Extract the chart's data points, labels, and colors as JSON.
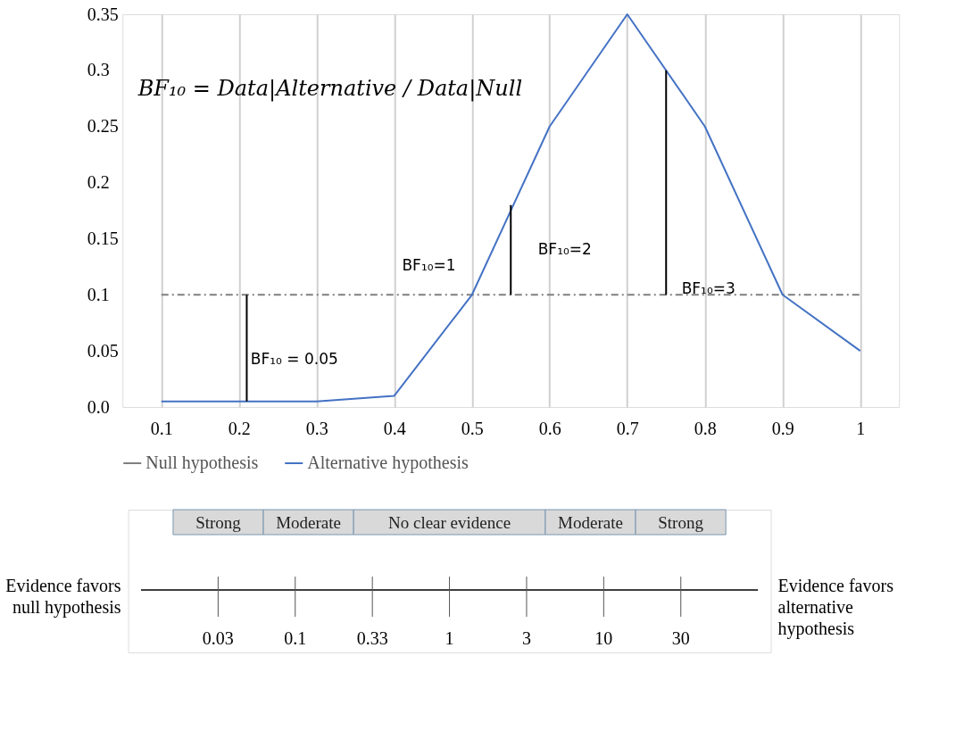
{
  "chart_data": [
    {
      "type": "line",
      "x": [
        0.1,
        0.2,
        0.3,
        0.4,
        0.5,
        0.6,
        0.7,
        0.8,
        0.9,
        1
      ],
      "xlim": [
        0.05,
        1.05
      ],
      "xticks": [
        0.1,
        0.2,
        0.3,
        0.4,
        0.5,
        0.6,
        0.7,
        0.8,
        0.9,
        1
      ],
      "ylim": [
        0,
        0.35
      ],
      "yticks": [
        {
          "value": 0,
          "label": "0.0"
        },
        0.05,
        0.1,
        0.15,
        0.2,
        0.25,
        0.3,
        0.35
      ],
      "grid": "x",
      "legend": "bottom",
      "marker": "none",
      "series": [
        {
          "name": "Null hypothesis",
          "color": "#7f7f7f",
          "line_style": "dashed",
          "values": [
            0.1,
            0.1,
            0.1,
            0.1,
            0.1,
            0.1,
            0.1,
            0.1,
            0.1,
            0.1
          ]
        },
        {
          "name": "Alternative hypothesis",
          "color": "#4472c4",
          "line_style": "solid",
          "values": [
            0.005,
            0.005,
            0.005,
            0.01,
            0.1,
            0.25,
            0.35,
            0.25,
            0.1,
            0.05
          ]
        },
        {
          "color": "#000000",
          "line_style": "solid",
          "x": [
            0.21,
            0.21
          ],
          "values": [
            0.005,
            0.1
          ]
        },
        {
          "color": "#000000",
          "line_style": "solid",
          "x": [
            0.55,
            0.55
          ],
          "values": [
            0.1,
            0.18
          ]
        },
        {
          "color": "#000000",
          "line_style": "solid",
          "x": [
            0.75,
            0.75
          ],
          "values": [
            0.1,
            0.3
          ]
        }
      ],
      "annotations": [
        "BF₁₀ = Data|Alternative / Data|Null",
        "BF₁₀ = 0.05",
        "BF₁₀=1",
        "BF₁₀=2",
        "BF₁₀=3"
      ]
    },
    {
      "type": "other",
      "categories": [
        "Strong",
        "Moderate",
        "No clear evidence",
        "Moderate",
        "Strong"
      ],
      "annotations": [
        "Evidence favors\nnull hypothesis",
        "0.03",
        "0.1",
        "0.33",
        "1",
        "3",
        "10",
        "30",
        "Evidence favors\nalternative\nhypothesis"
      ]
    }
  ]
}
